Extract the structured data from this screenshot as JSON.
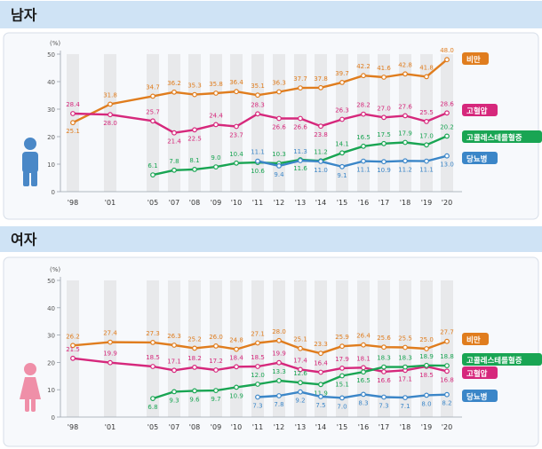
{
  "colors": {
    "header_bg": "#cfe3f5",
    "panel_bg": "#f7f9fc",
    "panel_border": "#d7dee8",
    "band": "#dcdcdc",
    "axis": "#9aa3ad",
    "obesity": "#e07d1e",
    "hypertension": "#d6287c",
    "cholesterol": "#19a553",
    "diabetes": "#3b86c8",
    "male_icon": "#4a88c7",
    "female_icon": "#ef8fa8"
  },
  "chart_data": [
    {
      "type": "line",
      "title": "남자",
      "ylabel": "(%)",
      "ylim": [
        0,
        50
      ],
      "yticks": [
        0,
        10,
        20,
        30,
        40,
        50
      ],
      "x": [
        "'98",
        "'01",
        "'05",
        "'07",
        "'08",
        "'09",
        "'10",
        "'11",
        "'12",
        "'13",
        "'14",
        "'15",
        "'16",
        "'17",
        "'18",
        "'19",
        "'20"
      ],
      "series": [
        {
          "name": "비만",
          "key": "obesity",
          "values": [
            25.1,
            31.8,
            34.7,
            36.2,
            35.3,
            35.8,
            36.4,
            35.1,
            36.3,
            37.7,
            37.8,
            39.7,
            42.2,
            41.6,
            42.8,
            41.8,
            48.0
          ]
        },
        {
          "name": "고혈압",
          "key": "hypertension",
          "values": [
            28.4,
            28.0,
            25.7,
            21.4,
            22.5,
            24.4,
            23.7,
            28.3,
            26.6,
            26.6,
            23.8,
            26.3,
            28.2,
            27.0,
            27.6,
            25.5,
            28.6
          ]
        },
        {
          "name": "고콜레스테롤혈증",
          "key": "cholesterol",
          "values": [
            null,
            null,
            6.1,
            7.8,
            8.1,
            9.0,
            10.4,
            10.6,
            10.3,
            11.6,
            11.2,
            14.1,
            16.5,
            17.5,
            17.9,
            17.0,
            20.2
          ]
        },
        {
          "name": "당뇨병",
          "key": "diabetes",
          "values": [
            null,
            null,
            null,
            null,
            null,
            null,
            null,
            11.1,
            9.4,
            11.3,
            11.0,
            9.1,
            11.1,
            10.9,
            11.2,
            11.1,
            13.0
          ]
        }
      ]
    },
    {
      "type": "line",
      "title": "여자",
      "ylabel": "(%)",
      "ylim": [
        0,
        50
      ],
      "yticks": [
        0,
        10,
        20,
        30,
        40,
        50
      ],
      "x": [
        "'98",
        "'01",
        "'05",
        "'07",
        "'08",
        "'09",
        "'10",
        "'11",
        "'12",
        "'13",
        "'14",
        "'15",
        "'16",
        "'17",
        "'18",
        "'19",
        "'20"
      ],
      "series": [
        {
          "name": "비만",
          "key": "obesity",
          "values": [
            26.2,
            27.4,
            27.3,
            26.3,
            25.2,
            26.0,
            24.8,
            27.1,
            28.0,
            25.1,
            23.3,
            25.9,
            26.4,
            25.6,
            25.5,
            25.0,
            27.7
          ]
        },
        {
          "name": "고혈압",
          "key": "hypertension",
          "values": [
            21.5,
            19.9,
            18.5,
            17.1,
            18.2,
            17.2,
            18.4,
            18.5,
            19.9,
            17.4,
            16.4,
            17.9,
            18.1,
            16.6,
            17.1,
            18.5,
            16.8
          ]
        },
        {
          "name": "고콜레스테롤혈증",
          "key": "cholesterol",
          "values": [
            null,
            null,
            6.8,
            9.3,
            9.6,
            9.7,
            10.9,
            12.0,
            13.3,
            12.6,
            11.9,
            15.1,
            16.5,
            18.3,
            18.3,
            18.9,
            18.8
          ]
        },
        {
          "name": "당뇨병",
          "key": "diabetes",
          "values": [
            null,
            null,
            null,
            null,
            null,
            null,
            null,
            7.3,
            7.8,
            9.2,
            7.5,
            7.0,
            8.3,
            7.3,
            7.1,
            8.0,
            8.2
          ]
        }
      ]
    }
  ]
}
